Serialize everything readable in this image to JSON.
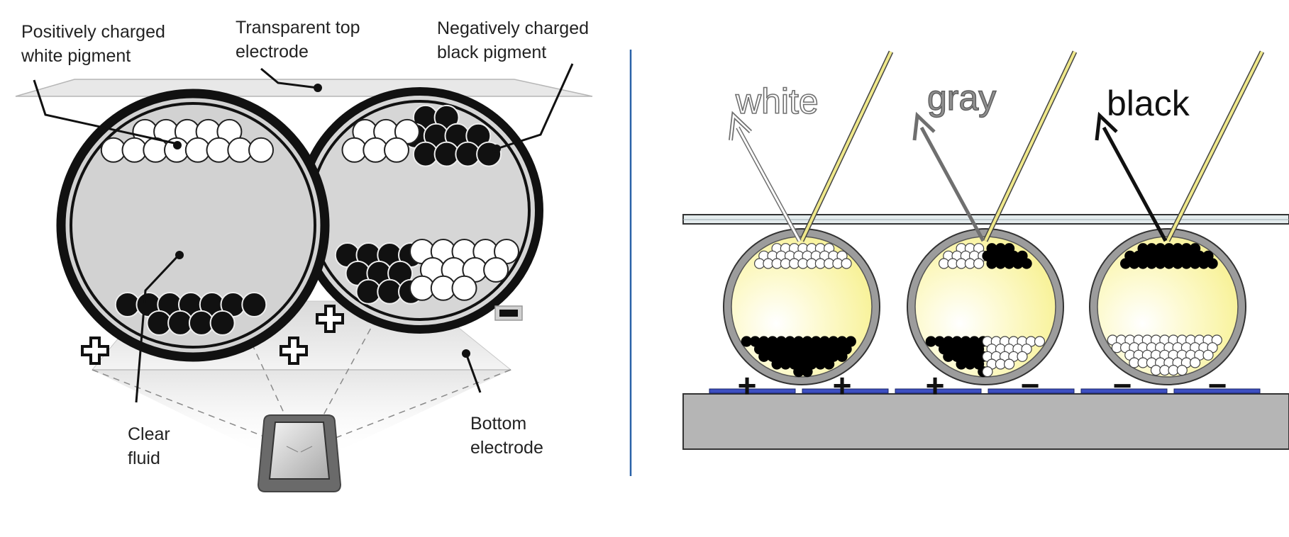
{
  "left_panel": {
    "labels": {
      "white_pigment": [
        "Positively charged",
        "white pigment"
      ],
      "top_electrode": [
        "Transparent top",
        "electrode"
      ],
      "black_pigment": [
        "Negatively charged",
        "black pigment"
      ],
      "clear_fluid": [
        "Clear",
        "fluid"
      ],
      "bottom_electrode": [
        "Bottom",
        "electrode"
      ]
    },
    "charges": {
      "plus": "+",
      "minus": "−"
    },
    "icons": [
      "plus-charge-icon",
      "minus-charge-icon",
      "eye-viewer-icon"
    ]
  },
  "right_panel": {
    "states": [
      {
        "label": "white",
        "electrodes": [
          "+",
          "+"
        ]
      },
      {
        "label": "gray",
        "electrodes": [
          "+",
          "−"
        ]
      },
      {
        "label": "black",
        "electrodes": [
          "−",
          "−"
        ]
      }
    ]
  },
  "colors": {
    "divider": "#2a62a8",
    "fluid_yellow": "#fbf7a6",
    "incident_light": "#efe88a",
    "electrode_blue": "#3d4fc2",
    "substrate": "#b5b5b5",
    "capsule_gray": "#d2d2d2"
  }
}
